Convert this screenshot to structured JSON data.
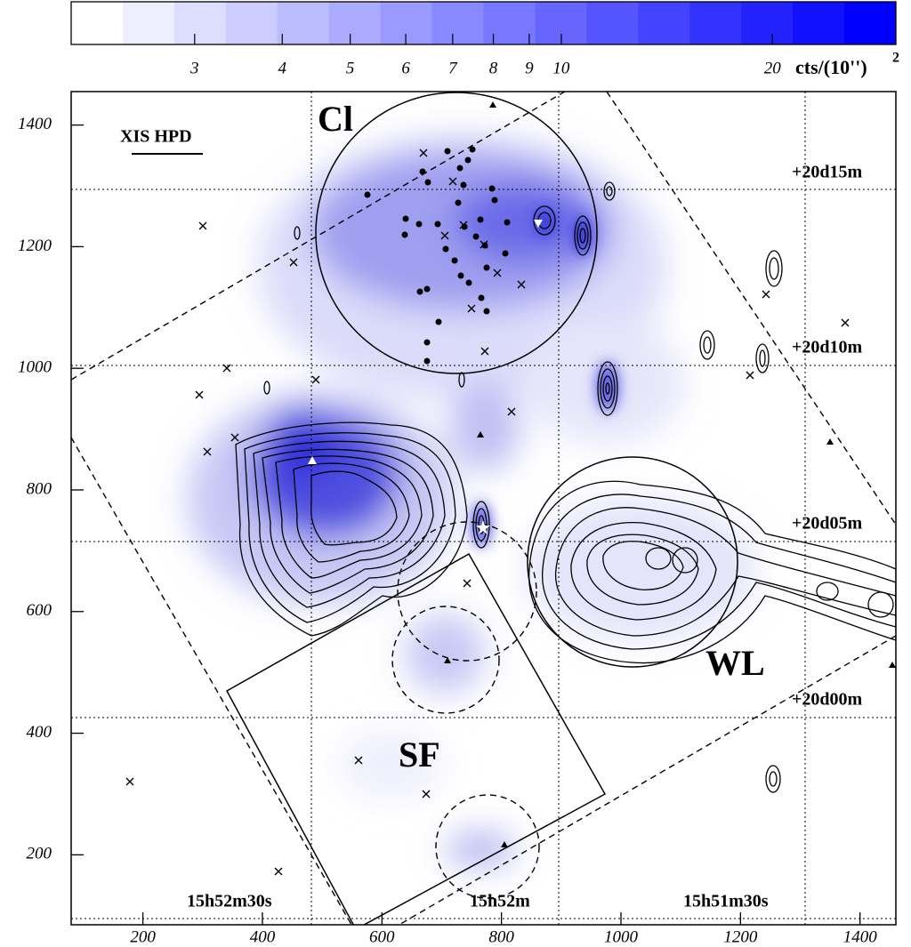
{
  "chart_data": {
    "type": "heatmap",
    "xlim": [
      80,
      1460
    ],
    "xticks": [
      200,
      400,
      600,
      800,
      1000,
      1200,
      1400
    ],
    "ylim": [
      85,
      1455
    ],
    "yticks": [
      200,
      400,
      600,
      800,
      1000,
      1200,
      1400
    ],
    "colorbar": {
      "range": [
        2,
        30
      ],
      "log": true,
      "ticks": [
        3,
        4,
        5,
        6,
        7,
        8,
        9,
        10,
        20
      ],
      "label": "cts/(10'')",
      "label_superscript": "2",
      "color_low": "#ffffff",
      "color_high": "#0000ff"
    },
    "annotations": [
      "XIS HPD",
      "Cl",
      "SF",
      "WL",
      "+20d15m",
      "+20d10m",
      "+20d05m",
      "+20d00m",
      "15h52m30s",
      "15h52m",
      "15h51m30s"
    ]
  }
}
